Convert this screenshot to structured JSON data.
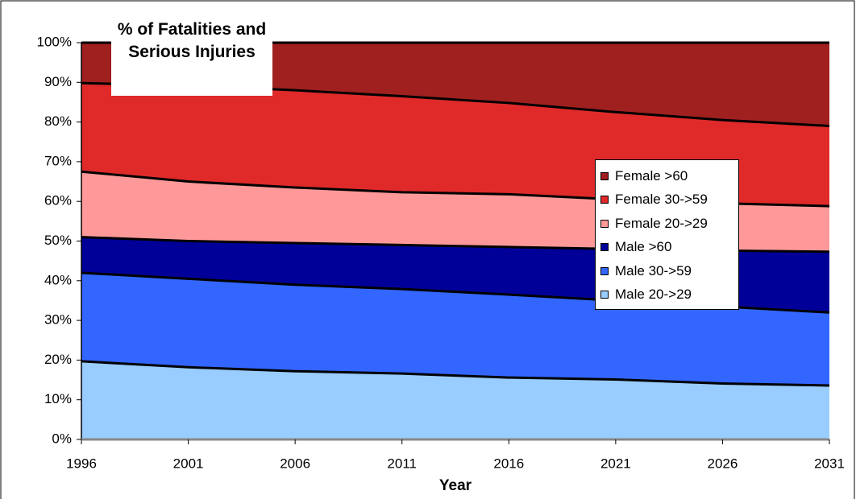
{
  "chart_data": {
    "type": "stacked_area",
    "title": "% of Fatalities and Serious Injuries",
    "xlabel": "Year",
    "x": [
      1996,
      2001,
      2006,
      2011,
      2016,
      2021,
      2026,
      2031
    ],
    "xlim": [
      1996,
      2031
    ],
    "xticks": [
      1996,
      2001,
      2006,
      2011,
      2016,
      2021,
      2026,
      2031
    ],
    "ylim": [
      0,
      100
    ],
    "yticks": [
      {
        "value": 0,
        "label": "0%"
      },
      {
        "value": 10,
        "label": "10%"
      },
      {
        "value": 20,
        "label": "20%"
      },
      {
        "value": 30,
        "label": "30%"
      },
      {
        "value": 40,
        "label": "40%"
      },
      {
        "value": 50,
        "label": "50%"
      },
      {
        "value": 60,
        "label": "60%"
      },
      {
        "value": 70,
        "label": "70%"
      },
      {
        "value": 80,
        "label": "80%"
      },
      {
        "value": 90,
        "label": "90%"
      },
      {
        "value": 100,
        "label": "100%"
      }
    ],
    "series": [
      {
        "name": "Male 20->29",
        "color": "#99ccff",
        "values": [
          19.7,
          18.2,
          17.2,
          16.6,
          15.6,
          15.1,
          14.1,
          13.6
        ]
      },
      {
        "name": "Male 30->59",
        "color": "#3366ff",
        "values": [
          22.3,
          22.3,
          21.8,
          21.3,
          20.9,
          19.9,
          19.4,
          18.4
        ]
      },
      {
        "name": "Male >60",
        "color": "#000099",
        "values": [
          9,
          9.5,
          10.5,
          11.1,
          12,
          13,
          14.1,
          15.3
        ]
      },
      {
        "name": "Female 20->29",
        "color": "#ff9999",
        "values": [
          16.5,
          15,
          14,
          13.3,
          13.3,
          12.5,
          11.9,
          11.5
        ]
      },
      {
        "name": "Female 30->59",
        "color": "#e02a2a",
        "values": [
          22.3,
          24.2,
          24.5,
          24.2,
          23,
          22,
          21,
          20.2
        ]
      },
      {
        "name": "Female >60",
        "color": "#a02020",
        "values": [
          10.2,
          10.8,
          12,
          13.5,
          15.2,
          17.5,
          19.5,
          21
        ]
      }
    ],
    "legend": "right"
  }
}
